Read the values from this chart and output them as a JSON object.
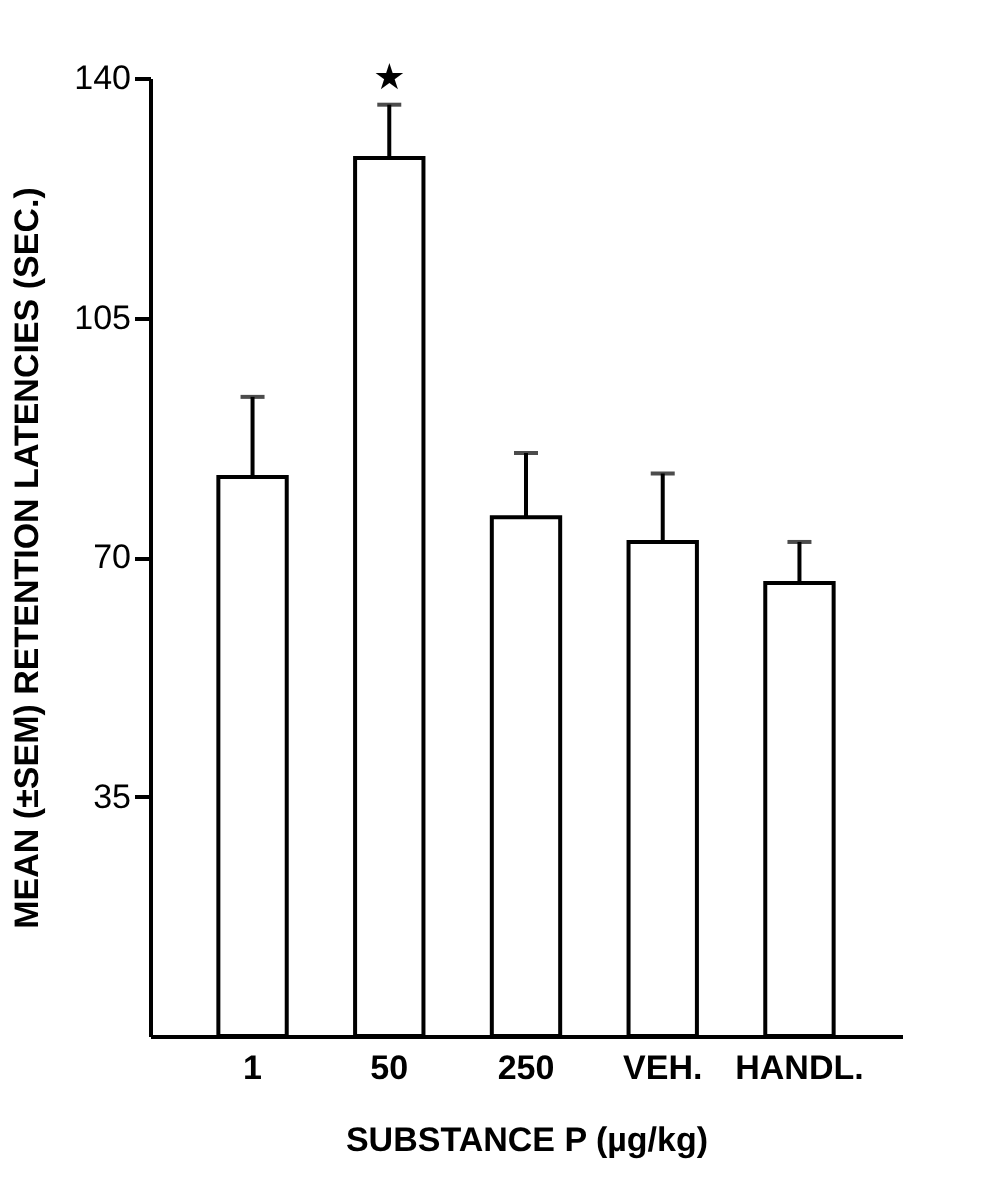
{
  "chart_data": {
    "type": "bar",
    "xlabel": "SUBSTANCE P (µg/kg)",
    "ylabel": "MEAN (±SEM) RETENTION LATENCIES (SEC.)",
    "categories": [
      "1",
      "50",
      "250",
      "VEH.",
      "HANDL."
    ],
    "values": [
      81.7,
      128.3,
      75.8,
      72.2,
      66.2
    ],
    "errors": [
      [
        81.7,
        93.4
      ],
      [
        128.3,
        136.1
      ],
      [
        75.8,
        85.2
      ],
      [
        72.2,
        82.2
      ],
      [
        66.2,
        72.2
      ]
    ],
    "color": "#ffffff",
    "ylim": [
      0,
      140
    ],
    "yticks": [
      35,
      70,
      105,
      140
    ],
    "grid": false,
    "annotations": [
      "★"
    ]
  }
}
